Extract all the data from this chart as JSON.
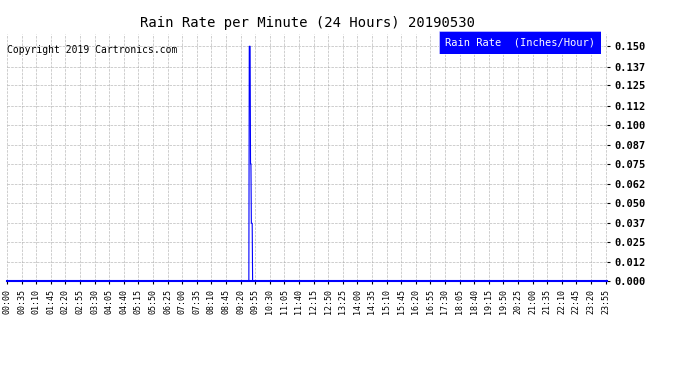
{
  "title": "Rain Rate per Minute (24 Hours) 20190530",
  "copyright_text": "Copyright 2019 Cartronics.com",
  "legend_label": "Rain Rate  (Inches/Hour)",
  "legend_bg": "#0000FF",
  "legend_fg": "#FFFFFF",
  "line_color": "#0000FF",
  "bg_color": "#FFFFFF",
  "plot_bg_color": "#FFFFFF",
  "grid_color": "#AAAAAA",
  "yticks": [
    0.0,
    0.012,
    0.025,
    0.037,
    0.05,
    0.062,
    0.075,
    0.087,
    0.1,
    0.112,
    0.125,
    0.137,
    0.15
  ],
  "ylim": [
    0.0,
    0.158
  ],
  "total_minutes": 1440,
  "xtick_step": 35,
  "rain_data": [
    [
      580,
      0.0
    ],
    [
      581,
      0.15
    ],
    [
      582,
      0.15
    ],
    [
      583,
      0.15
    ],
    [
      584,
      0.075
    ],
    [
      585,
      0.075
    ],
    [
      586,
      0.037
    ],
    [
      587,
      0.037
    ],
    [
      588,
      0.037
    ],
    [
      589,
      0.0
    ]
  ],
  "title_fontsize": 10,
  "copyright_fontsize": 7,
  "legend_fontsize": 7.5,
  "ytick_fontsize": 7.5,
  "xtick_fontsize": 6
}
